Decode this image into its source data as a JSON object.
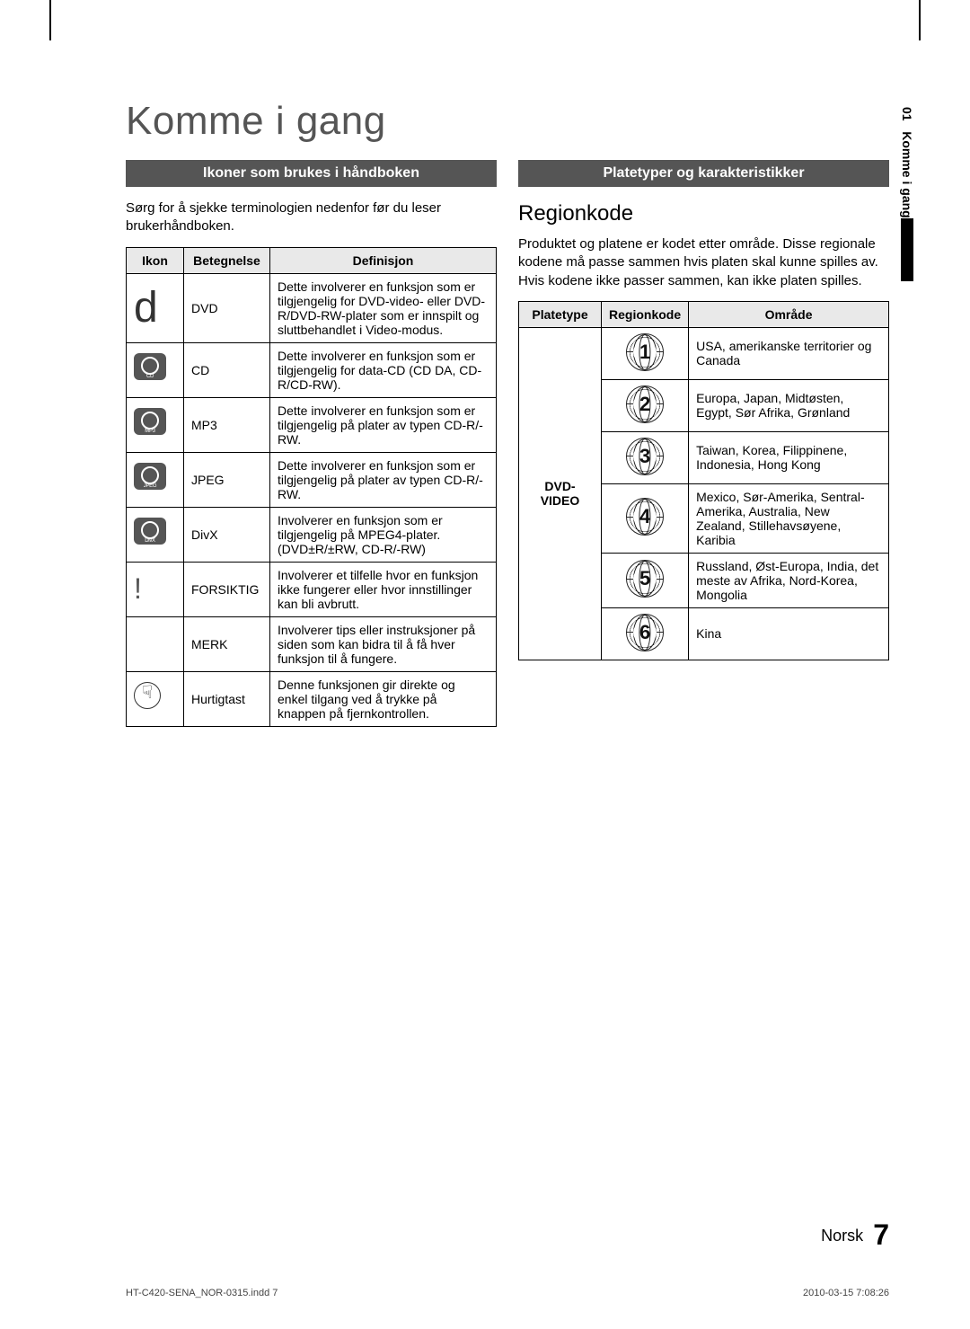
{
  "page": {
    "title": "Komme i gang",
    "side_tab": {
      "chapter_num": "01",
      "chapter_title": "Komme i gang"
    },
    "footer": {
      "lang": "Norsk",
      "page_num": "7"
    },
    "imprint": {
      "file": "HT-C420-SENA_NOR-0315.indd   7",
      "stamp": "2010-03-15   7:08:26"
    }
  },
  "left": {
    "bar": "Ikoner som brukes i håndboken",
    "intro": "Sørg for å sjekke terminologien nedenfor før du leser brukerhåndboken.",
    "headers": {
      "c1": "Ikon",
      "c2": "Betegnelse",
      "c3": "Definisjon"
    },
    "rows": [
      {
        "icon_key": "d",
        "term": "DVD",
        "def": "Dette involverer en funksjon som er tilgjengelig for DVD-video- eller DVD-R/DVD-RW-plater som er innspilt og sluttbehandlet i Video-modus."
      },
      {
        "icon_key": "disc",
        "icon_label": "CD",
        "term": "CD",
        "def": "Dette involverer en funksjon som er tilgjengelig for data-CD (CD DA, CD-R/CD-RW)."
      },
      {
        "icon_key": "disc",
        "icon_label": "MP3",
        "term": "MP3",
        "def": "Dette involverer en funksjon som er tilgjengelig på plater av typen CD-R/-RW."
      },
      {
        "icon_key": "disc",
        "icon_label": "JPEG",
        "term": "JPEG",
        "def": "Dette involverer en funksjon som er tilgjengelig på plater av typen CD-R/-RW."
      },
      {
        "icon_key": "disc",
        "icon_label": "DivX",
        "term": "DivX",
        "def": "Involverer en funksjon som er tilgjengelig på MPEG4-plater. (DVD±R/±RW, CD-R/-RW)"
      },
      {
        "icon_key": "excl",
        "term": "FORSIKTIG",
        "def": "Involverer et tilfelle hvor en funksjon ikke fungerer eller hvor innstillinger kan bli avbrutt."
      },
      {
        "icon_key": "none",
        "term": "MERK",
        "def": "Involverer tips eller instruksjoner på siden som kan bidra til å få hver funksjon til å fungere."
      },
      {
        "icon_key": "hand",
        "term": "Hurtigtast",
        "def": "Denne funksjonen gir direkte og enkel tilgang ved å trykke på knappen på fjernkontrollen."
      }
    ]
  },
  "right": {
    "bar": "Platetyper og karakteristikker",
    "subheading": "Regionkode",
    "intro": "Produktet og platene er kodet etter område. Disse regionale kodene må passe sammen hvis platen skal kunne spilles av. Hvis kodene ikke passer sammen, kan ikke platen spilles.",
    "headers": {
      "c1": "Platetype",
      "c2": "Regionkode",
      "c3": "Område"
    },
    "disc_type": "DVD-VIDEO",
    "rows": [
      {
        "code": "1",
        "area": "USA, amerikanske territorier og Canada"
      },
      {
        "code": "2",
        "area": "Europa, Japan, Midtøsten, Egypt, Sør Afrika, Grønland"
      },
      {
        "code": "3",
        "area": "Taiwan, Korea, Filippinene, Indonesia, Hong Kong"
      },
      {
        "code": "4",
        "area": "Mexico, Sør-Amerika, Sentral-Amerika, Australia, New Zealand, Stillehavsøyene, Karibia"
      },
      {
        "code": "5",
        "area": "Russland, Øst-Europa, India, det meste av Afrika, Nord-Korea, Mongolia"
      },
      {
        "code": "6",
        "area": "Kina"
      }
    ]
  }
}
